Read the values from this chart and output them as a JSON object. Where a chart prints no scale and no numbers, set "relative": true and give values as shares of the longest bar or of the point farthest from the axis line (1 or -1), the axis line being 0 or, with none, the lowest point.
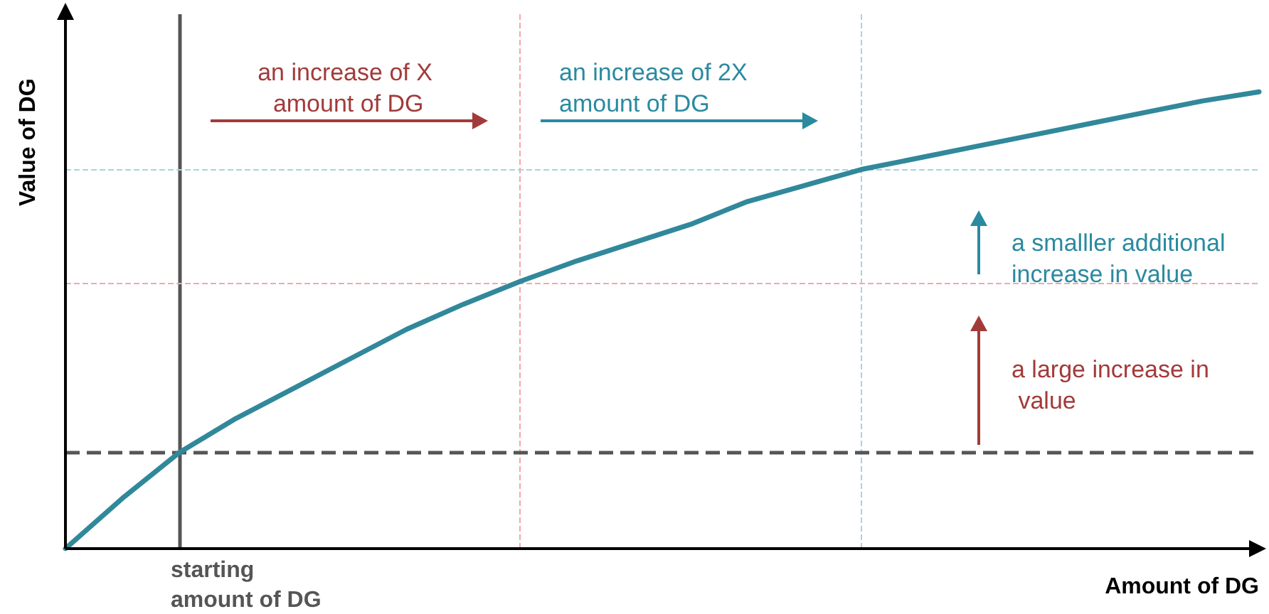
{
  "chart_data": {
    "type": "line",
    "relative": true,
    "xlabel": "Amount of DG",
    "ylabel": "Value of DG",
    "categories": [
      null,
      null,
      null,
      null,
      null,
      null,
      null,
      null,
      null,
      null,
      null,
      null,
      null,
      null,
      null,
      null,
      null,
      null,
      null,
      null,
      null,
      null
    ],
    "series": [
      {
        "color": "#31889b",
        "values": [
          0,
          0.11,
          0.21,
          0.285,
          0.35,
          0.415,
          0.48,
          0.535,
          0.585,
          0.63,
          0.67,
          0.71,
          0.76,
          0.795,
          0.83,
          0.855,
          0.88,
          0.905,
          0.93,
          0.955,
          0.98,
          1.0
        ]
      }
    ],
    "ref_lines": [
      {
        "axis": "y",
        "value": 0.21,
        "color": "#555555",
        "line_style": "dashed"
      },
      {
        "axis": "y",
        "value": 0.585,
        "color": "#f2a7ae",
        "line_style": "dashed"
      },
      {
        "axis": "y",
        "value": 0.83,
        "color": "#a9d3df",
        "line_style": "dashed"
      }
    ],
    "annotations": [
      "an increase of X amount of DG",
      "an increase of 2X amount of DG",
      "a smalller additional increase in value",
      "a large increase in value",
      "starting amount of DG"
    ],
    "grid": false,
    "marker": "none",
    "line_style": "solid"
  }
}
